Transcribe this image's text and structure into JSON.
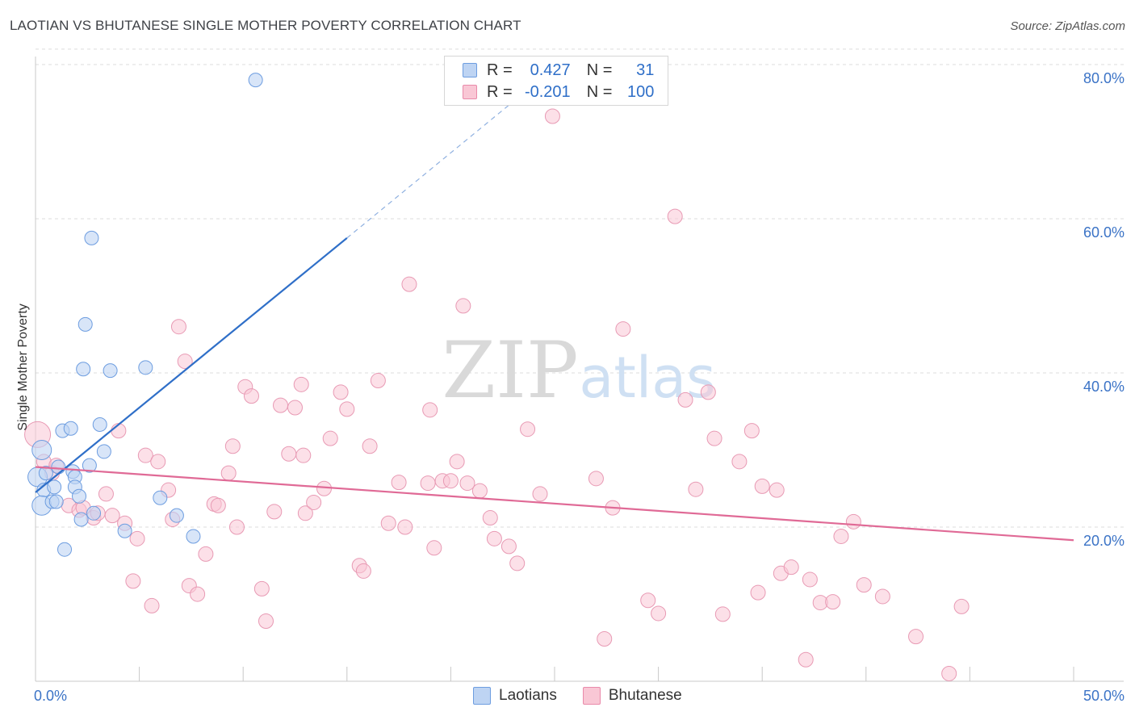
{
  "title": "LAOTIAN VS BHUTANESE SINGLE MOTHER POVERTY CORRELATION CHART",
  "source": "Source: ZipAtlas.com",
  "watermark": {
    "zip": "ZIP",
    "atlas": "atlas"
  },
  "colors": {
    "blue": "#3b73c6",
    "blue_line": "#2f6fc8",
    "pink": "#e06a96",
    "blue_fill": "#bed4f3",
    "pink_fill": "#f9c7d5"
  },
  "legend": {
    "rows": [
      {
        "r_label": "R =",
        "r_value": "0.427",
        "n_label": "N =",
        "n_value": "31"
      },
      {
        "r_label": "R =",
        "r_value": "-0.201",
        "n_label": "N =",
        "n_value": "100"
      }
    ]
  },
  "bottom_legend": {
    "laotians": "Laotians",
    "bhutanese": "Bhutanese"
  },
  "chart_data": {
    "type": "scatter",
    "title": "LAOTIAN VS BHUTANESE SINGLE MOTHER POVERTY CORRELATION CHART",
    "xlabel": "",
    "ylabel": "Single Mother Poverty",
    "xlim": [
      0,
      50
    ],
    "ylim": [
      0,
      84
    ],
    "x_tick_labels": [
      "0.0%",
      "50.0%"
    ],
    "y_ticks": [
      {
        "value": 20,
        "label": "20.0%"
      },
      {
        "value": 40,
        "label": "40.0%"
      },
      {
        "value": 60,
        "label": "60.0%"
      },
      {
        "value": 80,
        "label": "80.0%"
      }
    ],
    "series": [
      {
        "name": "Laotians",
        "r": 0.427,
        "n": 31,
        "trend": {
          "x_start": 0.0,
          "y_start": 24.5,
          "x_solid_end": 15.0,
          "y_solid_end": 57.5,
          "x_dash_end": 24.5,
          "y_dash_end": 78.5
        },
        "points": [
          [
            10.6,
            78.0
          ],
          [
            2.7,
            57.5
          ],
          [
            2.4,
            46.3
          ],
          [
            2.3,
            40.5
          ],
          [
            3.6,
            40.3
          ],
          [
            5.3,
            40.7
          ],
          [
            0.3,
            30.0
          ],
          [
            1.3,
            32.5
          ],
          [
            1.7,
            32.8
          ],
          [
            3.1,
            33.3
          ],
          [
            3.3,
            29.8
          ],
          [
            2.6,
            28.0
          ],
          [
            0.1,
            26.5
          ],
          [
            0.5,
            27.0
          ],
          [
            1.1,
            27.8
          ],
          [
            1.8,
            27.2
          ],
          [
            1.9,
            26.5
          ],
          [
            0.4,
            24.8
          ],
          [
            0.9,
            25.2
          ],
          [
            1.9,
            25.2
          ],
          [
            2.1,
            24.0
          ],
          [
            0.3,
            22.8
          ],
          [
            0.8,
            23.3
          ],
          [
            1.0,
            23.3
          ],
          [
            6.0,
            23.8
          ],
          [
            2.2,
            21.0
          ],
          [
            2.8,
            21.8
          ],
          [
            6.8,
            21.5
          ],
          [
            4.3,
            19.5
          ],
          [
            7.6,
            18.8
          ],
          [
            1.4,
            17.1
          ]
        ]
      },
      {
        "name": "Bhutanese",
        "r": -0.201,
        "n": 100,
        "trend": {
          "x_start": 0.0,
          "y_start": 27.8,
          "x_end": 50.0,
          "y_end": 18.3
        },
        "points": [
          [
            0.1,
            32.0
          ],
          [
            0.4,
            28.5
          ],
          [
            0.8,
            27.0
          ],
          [
            1.0,
            28.0
          ],
          [
            1.6,
            22.8
          ],
          [
            2.1,
            22.2
          ],
          [
            2.3,
            22.5
          ],
          [
            2.8,
            21.2
          ],
          [
            3.0,
            21.8
          ],
          [
            3.4,
            24.3
          ],
          [
            3.7,
            21.5
          ],
          [
            4.0,
            32.5
          ],
          [
            4.3,
            20.5
          ],
          [
            4.7,
            13.0
          ],
          [
            4.9,
            18.5
          ],
          [
            5.3,
            29.3
          ],
          [
            5.6,
            9.8
          ],
          [
            5.9,
            28.5
          ],
          [
            6.4,
            24.8
          ],
          [
            6.6,
            21.0
          ],
          [
            6.9,
            46.0
          ],
          [
            7.2,
            41.5
          ],
          [
            7.4,
            12.4
          ],
          [
            7.8,
            11.3
          ],
          [
            8.2,
            16.5
          ],
          [
            8.6,
            23.0
          ],
          [
            8.8,
            22.8
          ],
          [
            9.3,
            27.0
          ],
          [
            9.5,
            30.5
          ],
          [
            9.7,
            20.0
          ],
          [
            10.1,
            38.2
          ],
          [
            10.4,
            37.0
          ],
          [
            10.9,
            12.0
          ],
          [
            11.1,
            7.8
          ],
          [
            11.5,
            22.0
          ],
          [
            11.8,
            35.8
          ],
          [
            12.2,
            29.5
          ],
          [
            12.5,
            35.5
          ],
          [
            12.8,
            38.5
          ],
          [
            12.9,
            29.3
          ],
          [
            13.0,
            21.8
          ],
          [
            13.4,
            23.2
          ],
          [
            13.9,
            25.0
          ],
          [
            14.2,
            31.5
          ],
          [
            14.7,
            37.5
          ],
          [
            15.0,
            35.3
          ],
          [
            15.6,
            15.0
          ],
          [
            15.8,
            14.3
          ],
          [
            16.1,
            30.5
          ],
          [
            16.5,
            39.0
          ],
          [
            17.0,
            20.5
          ],
          [
            17.5,
            25.8
          ],
          [
            17.8,
            20.0
          ],
          [
            18.0,
            51.5
          ],
          [
            18.9,
            25.7
          ],
          [
            19.0,
            35.2
          ],
          [
            19.2,
            17.3
          ],
          [
            19.6,
            26.0
          ],
          [
            20.0,
            26.0
          ],
          [
            20.3,
            28.5
          ],
          [
            20.6,
            48.7
          ],
          [
            20.8,
            25.7
          ],
          [
            21.4,
            24.7
          ],
          [
            21.9,
            21.2
          ],
          [
            22.1,
            18.5
          ],
          [
            22.8,
            17.5
          ],
          [
            23.2,
            15.3
          ],
          [
            23.7,
            32.7
          ],
          [
            24.3,
            24.3
          ],
          [
            24.9,
            73.3
          ],
          [
            27.0,
            26.3
          ],
          [
            27.4,
            5.5
          ],
          [
            27.8,
            22.5
          ],
          [
            28.3,
            45.7
          ],
          [
            29.5,
            10.5
          ],
          [
            30.0,
            8.8
          ],
          [
            30.8,
            60.3
          ],
          [
            31.3,
            36.5
          ],
          [
            31.8,
            24.9
          ],
          [
            32.4,
            37.5
          ],
          [
            32.7,
            31.5
          ],
          [
            33.1,
            8.7
          ],
          [
            33.9,
            28.5
          ],
          [
            34.5,
            32.5
          ],
          [
            34.8,
            11.5
          ],
          [
            35.0,
            25.3
          ],
          [
            35.7,
            24.8
          ],
          [
            35.9,
            14.0
          ],
          [
            36.4,
            14.8
          ],
          [
            37.1,
            2.8
          ],
          [
            37.3,
            13.2
          ],
          [
            37.8,
            10.2
          ],
          [
            38.4,
            10.3
          ],
          [
            38.8,
            18.8
          ],
          [
            39.4,
            20.7
          ],
          [
            39.9,
            12.5
          ],
          [
            40.8,
            11.0
          ],
          [
            42.4,
            5.8
          ],
          [
            44.6,
            9.7
          ],
          [
            44.0,
            1.0
          ]
        ]
      }
    ]
  }
}
